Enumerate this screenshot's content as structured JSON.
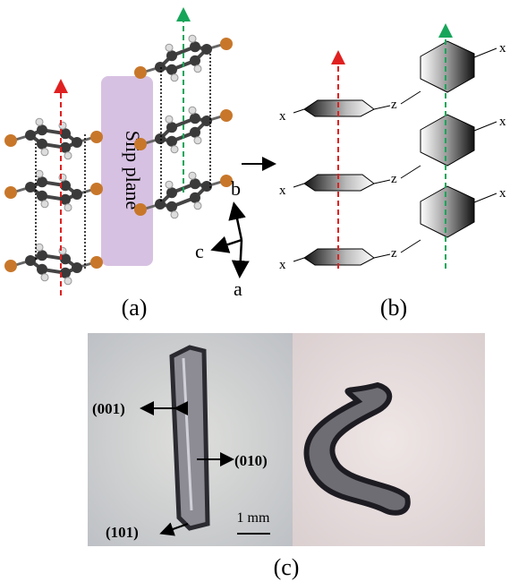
{
  "panel_a": {
    "label": "(a)",
    "slip_plane": "Slip plane",
    "axes": {
      "b": "b",
      "c": "c",
      "a": "a"
    }
  },
  "panel_b": {
    "label": "(b)",
    "left_substituents": [
      "x",
      "x",
      "x"
    ],
    "right_substituents": [
      "x",
      "x",
      "x"
    ],
    "linkers": [
      "z",
      "z",
      "z"
    ]
  },
  "panel_c": {
    "label": "(c)",
    "faces": [
      "(001)",
      "(010)",
      "(101)"
    ],
    "scale_bar": "1 mm"
  }
}
